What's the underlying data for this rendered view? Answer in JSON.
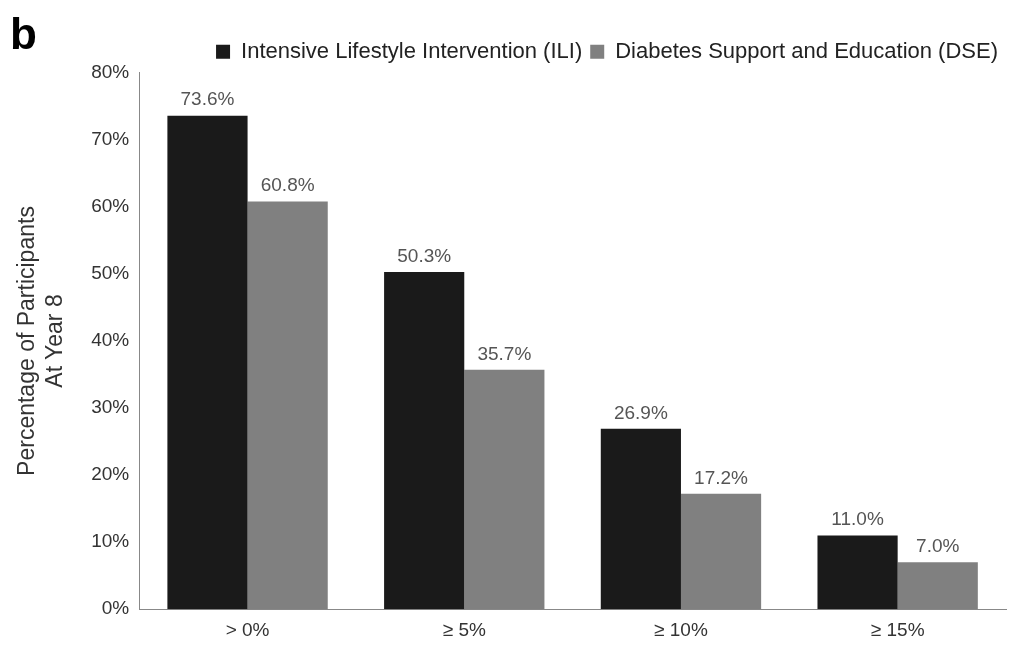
{
  "chart_data": {
    "type": "bar",
    "title": "b",
    "ylabel": "Percentage of Participants\nAt Year 8",
    "categories": [
      "> 0%",
      "≥ 5%",
      "≥ 10%",
      "≥ 15%"
    ],
    "series": [
      {
        "name": "Intensive Lifestyle Intervention (ILI)",
        "color": "#1a1a1a",
        "values": [
          73.6,
          50.3,
          26.9,
          11.0
        ],
        "value_labels": [
          "73.6%",
          "50.3%",
          "26.9%",
          "11.0%"
        ]
      },
      {
        "name": "Diabetes Support and Education (DSE)",
        "color": "#808080",
        "values": [
          60.8,
          35.7,
          17.2,
          7.0
        ],
        "value_labels": [
          "60.8%",
          "35.7%",
          "17.2%",
          "7.0%"
        ]
      }
    ],
    "ylim": [
      0,
      80
    ],
    "yticks": [
      {
        "value": 0,
        "label": "0%"
      },
      {
        "value": 10,
        "label": "10%"
      },
      {
        "value": 20,
        "label": "20%"
      },
      {
        "value": 30,
        "label": "30%"
      },
      {
        "value": 40,
        "label": "40%"
      },
      {
        "value": 50,
        "label": "50%"
      },
      {
        "value": 60,
        "label": "60%"
      },
      {
        "value": 70,
        "label": "70%"
      },
      {
        "value": 80,
        "label": "80%"
      }
    ],
    "grid": false,
    "legend": "top right"
  }
}
